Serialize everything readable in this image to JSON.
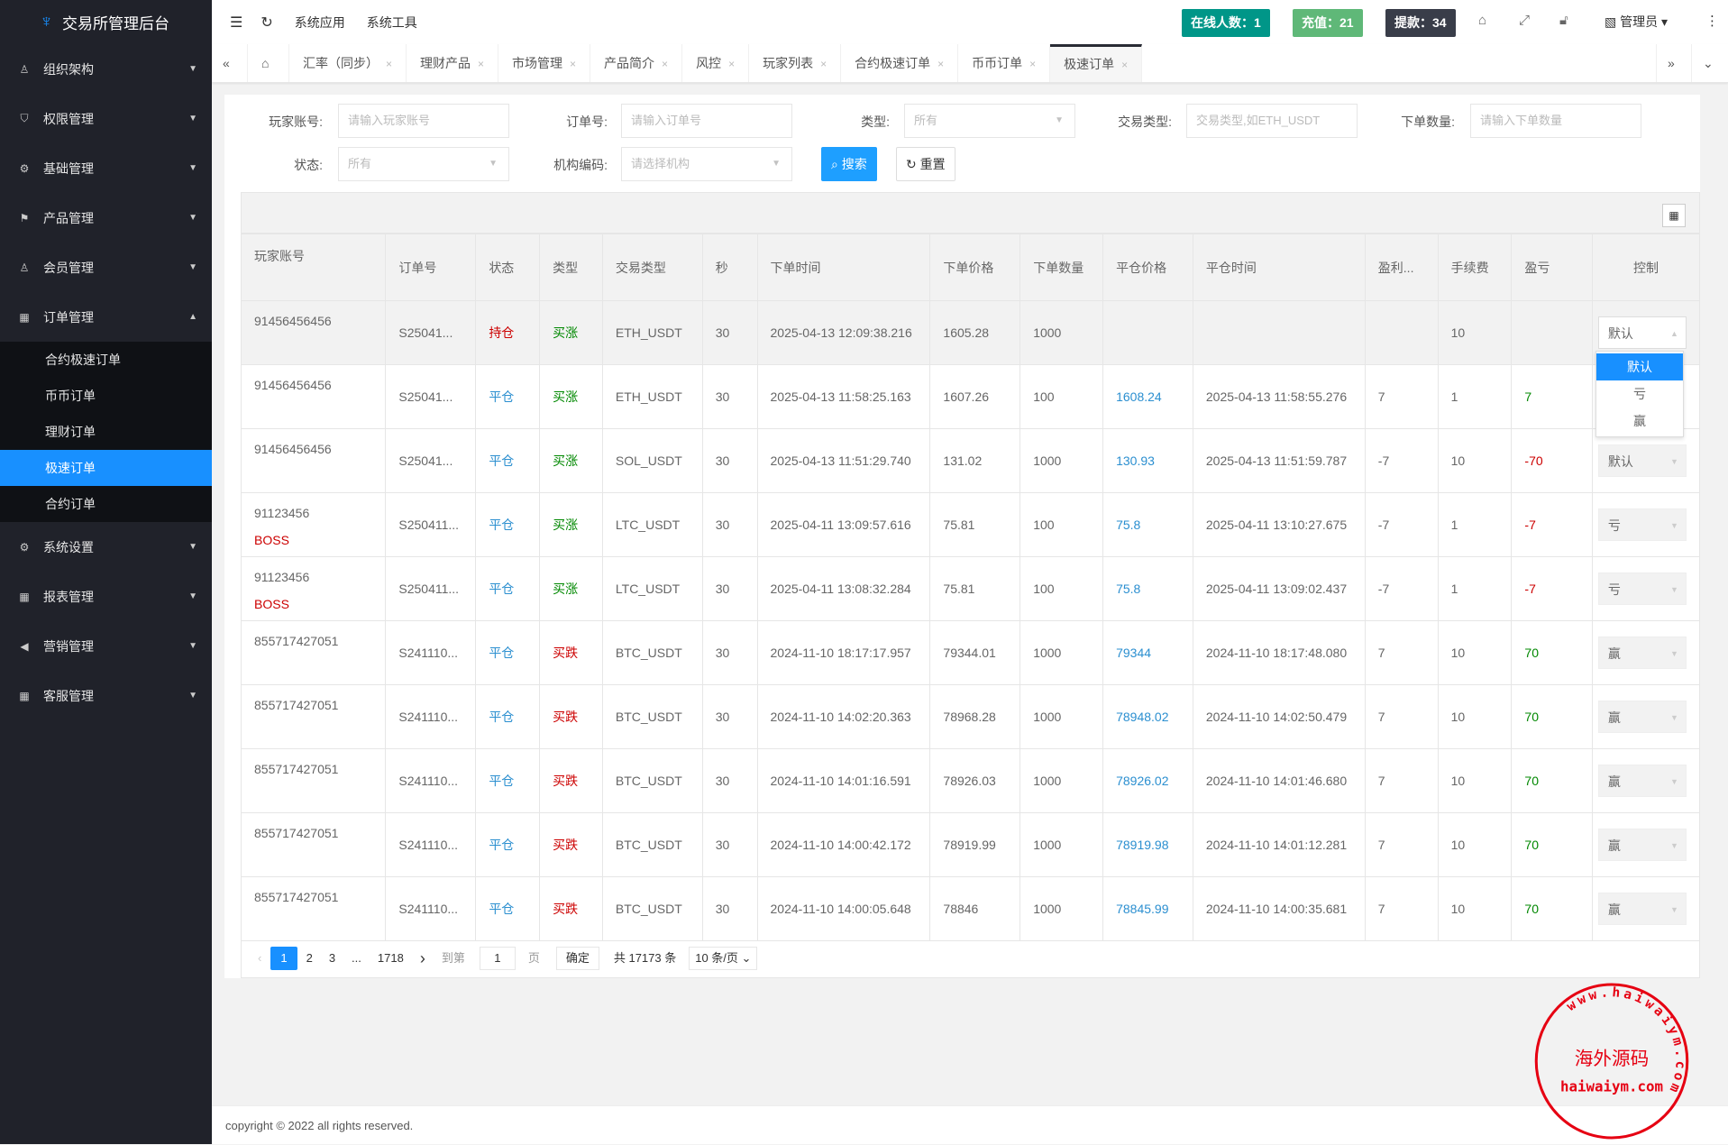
{
  "app": {
    "title": "交易所管理后台"
  },
  "sidebar": {
    "items": [
      {
        "label": "组织架构",
        "icon": "user-icon"
      },
      {
        "label": "权限管理",
        "icon": "shield-icon"
      },
      {
        "label": "基础管理",
        "icon": "gear-icon"
      },
      {
        "label": "产品管理",
        "icon": "flag-icon"
      },
      {
        "label": "会员管理",
        "icon": "user-icon"
      },
      {
        "label": "订单管理",
        "icon": "grid-icon",
        "expanded": true,
        "children": [
          "合约极速订单",
          "币币订单",
          "理财订单",
          "极速订单",
          "合约订单"
        ],
        "active_child": "极速订单"
      },
      {
        "label": "系统设置",
        "icon": "gear-icon"
      },
      {
        "label": "报表管理",
        "icon": "grid-icon"
      },
      {
        "label": "营销管理",
        "icon": "speaker-icon"
      },
      {
        "label": "客服管理",
        "icon": "grid-icon"
      }
    ]
  },
  "topbar": {
    "links": [
      "系统应用",
      "系统工具"
    ],
    "badges": [
      {
        "text": "在线人数：1",
        "color": "#009688"
      },
      {
        "text": "充值：21",
        "color": "#5FB878"
      },
      {
        "text": "提款：34",
        "color": "#393D49"
      }
    ],
    "user": "管理员"
  },
  "tabs": {
    "items": [
      "汇率（同步）",
      "理财产品",
      "市场管理",
      "产品简介",
      "风控",
      "玩家列表",
      "合约极速订单",
      "币币订单",
      "极速订单"
    ],
    "active": "极速订单"
  },
  "filters": {
    "player": {
      "label": "玩家账号:",
      "placeholder": "请输入玩家账号"
    },
    "order": {
      "label": "订单号:",
      "placeholder": "请输入订单号"
    },
    "type": {
      "label": "类型:",
      "value": "所有"
    },
    "trade_type": {
      "label": "交易类型:",
      "placeholder": "交易类型,如ETH_USDT"
    },
    "qty": {
      "label": "下单数量:",
      "placeholder": "请输入下单数量"
    },
    "status": {
      "label": "状态:",
      "value": "所有"
    },
    "org": {
      "label": "机构编码:",
      "placeholder": "请选择机构"
    },
    "search_label": "搜索",
    "reset_label": "重置"
  },
  "table": {
    "columns": [
      "玩家账号",
      "订单号",
      "状态",
      "类型",
      "交易类型",
      "秒",
      "下单时间",
      "下单价格",
      "下单数量",
      "平仓价格",
      "平仓时间",
      "盈利...",
      "手续费",
      "盈亏",
      "控制"
    ],
    "rows": [
      {
        "acct": "91456456456",
        "tag": "",
        "order": "S25041...",
        "status": "持仓",
        "type": "买涨",
        "pair": "ETH_USDT",
        "sec": "30",
        "time": "2025-04-13 12:09:38.216",
        "price": "1605.28",
        "qty": "1000",
        "close_price": "",
        "close_time": "",
        "profit_rate": "",
        "fee": "10",
        "pnl": "",
        "control": "默认"
      },
      {
        "acct": "91456456456",
        "tag": "",
        "order": "S25041...",
        "status": "平仓",
        "type": "买涨",
        "pair": "ETH_USDT",
        "sec": "30",
        "time": "2025-04-13 11:58:25.163",
        "price": "1607.26",
        "qty": "100",
        "close_price": "1608.24",
        "close_time": "2025-04-13 11:58:55.276",
        "profit_rate": "7",
        "fee": "1",
        "pnl": "7",
        "control": ""
      },
      {
        "acct": "91456456456",
        "tag": "",
        "order": "S25041...",
        "status": "平仓",
        "type": "买涨",
        "pair": "SOL_USDT",
        "sec": "30",
        "time": "2025-04-13 11:51:29.740",
        "price": "131.02",
        "qty": "1000",
        "close_price": "130.93",
        "close_time": "2025-04-13 11:51:59.787",
        "profit_rate": "-7",
        "fee": "10",
        "pnl": "-70",
        "control": "默认"
      },
      {
        "acct": "91123456",
        "tag": "BOSS",
        "order": "S250411...",
        "status": "平仓",
        "type": "买涨",
        "pair": "LTC_USDT",
        "sec": "30",
        "time": "2025-04-11 13:09:57.616",
        "price": "75.81",
        "qty": "100",
        "close_price": "75.8",
        "close_time": "2025-04-11 13:10:27.675",
        "profit_rate": "-7",
        "fee": "1",
        "pnl": "-7",
        "control": "亏"
      },
      {
        "acct": "91123456",
        "tag": "BOSS",
        "order": "S250411...",
        "status": "平仓",
        "type": "买涨",
        "pair": "LTC_USDT",
        "sec": "30",
        "time": "2025-04-11 13:08:32.284",
        "price": "75.81",
        "qty": "100",
        "close_price": "75.8",
        "close_time": "2025-04-11 13:09:02.437",
        "profit_rate": "-7",
        "fee": "1",
        "pnl": "-7",
        "control": "亏"
      },
      {
        "acct": "855717427051",
        "tag": "",
        "order": "S241110...",
        "status": "平仓",
        "type": "买跌",
        "pair": "BTC_USDT",
        "sec": "30",
        "time": "2024-11-10 18:17:17.957",
        "price": "79344.01",
        "qty": "1000",
        "close_price": "79344",
        "close_time": "2024-11-10 18:17:48.080",
        "profit_rate": "7",
        "fee": "10",
        "pnl": "70",
        "control": "赢"
      },
      {
        "acct": "855717427051",
        "tag": "",
        "order": "S241110...",
        "status": "平仓",
        "type": "买跌",
        "pair": "BTC_USDT",
        "sec": "30",
        "time": "2024-11-10 14:02:20.363",
        "price": "78968.28",
        "qty": "1000",
        "close_price": "78948.02",
        "close_time": "2024-11-10 14:02:50.479",
        "profit_rate": "7",
        "fee": "10",
        "pnl": "70",
        "control": "赢"
      },
      {
        "acct": "855717427051",
        "tag": "",
        "order": "S241110...",
        "status": "平仓",
        "type": "买跌",
        "pair": "BTC_USDT",
        "sec": "30",
        "time": "2024-11-10 14:01:16.591",
        "price": "78926.03",
        "qty": "1000",
        "close_price": "78926.02",
        "close_time": "2024-11-10 14:01:46.680",
        "profit_rate": "7",
        "fee": "10",
        "pnl": "70",
        "control": "赢"
      },
      {
        "acct": "855717427051",
        "tag": "",
        "order": "S241110...",
        "status": "平仓",
        "type": "买跌",
        "pair": "BTC_USDT",
        "sec": "30",
        "time": "2024-11-10 14:00:42.172",
        "price": "78919.99",
        "qty": "1000",
        "close_price": "78919.98",
        "close_time": "2024-11-10 14:01:12.281",
        "profit_rate": "7",
        "fee": "10",
        "pnl": "70",
        "control": "赢"
      },
      {
        "acct": "855717427051",
        "tag": "",
        "order": "S241110...",
        "status": "平仓",
        "type": "买跌",
        "pair": "BTC_USDT",
        "sec": "30",
        "time": "2024-11-10 14:00:05.648",
        "price": "78846",
        "qty": "1000",
        "close_price": "78845.99",
        "close_time": "2024-11-10 14:00:35.681",
        "profit_rate": "7",
        "fee": "10",
        "pnl": "70",
        "control": "赢"
      }
    ]
  },
  "control_dropdown": {
    "options": [
      "默认",
      "亏",
      "赢"
    ],
    "selected": "默认"
  },
  "pagination": {
    "pages": [
      "1",
      "2",
      "3",
      "...",
      "1718"
    ],
    "current": "1",
    "goto_label": "到第",
    "goto_value": "1",
    "page_suffix": "页",
    "confirm": "确定",
    "total": "共 17173 条",
    "page_size": "10 条/页"
  },
  "watermark": {
    "ring_text": "www.haiwaiym.com",
    "center": "海外源码",
    "domain": "haiwaiym.com",
    "color": "#e60012"
  },
  "footer": {
    "copyright": "copyright © 2022 all rights reserved."
  },
  "colors": {
    "sidebar": "#20222a",
    "active": "#1890ff",
    "red": "#cc0000",
    "green": "#008800",
    "link": "#2b8fd0"
  }
}
